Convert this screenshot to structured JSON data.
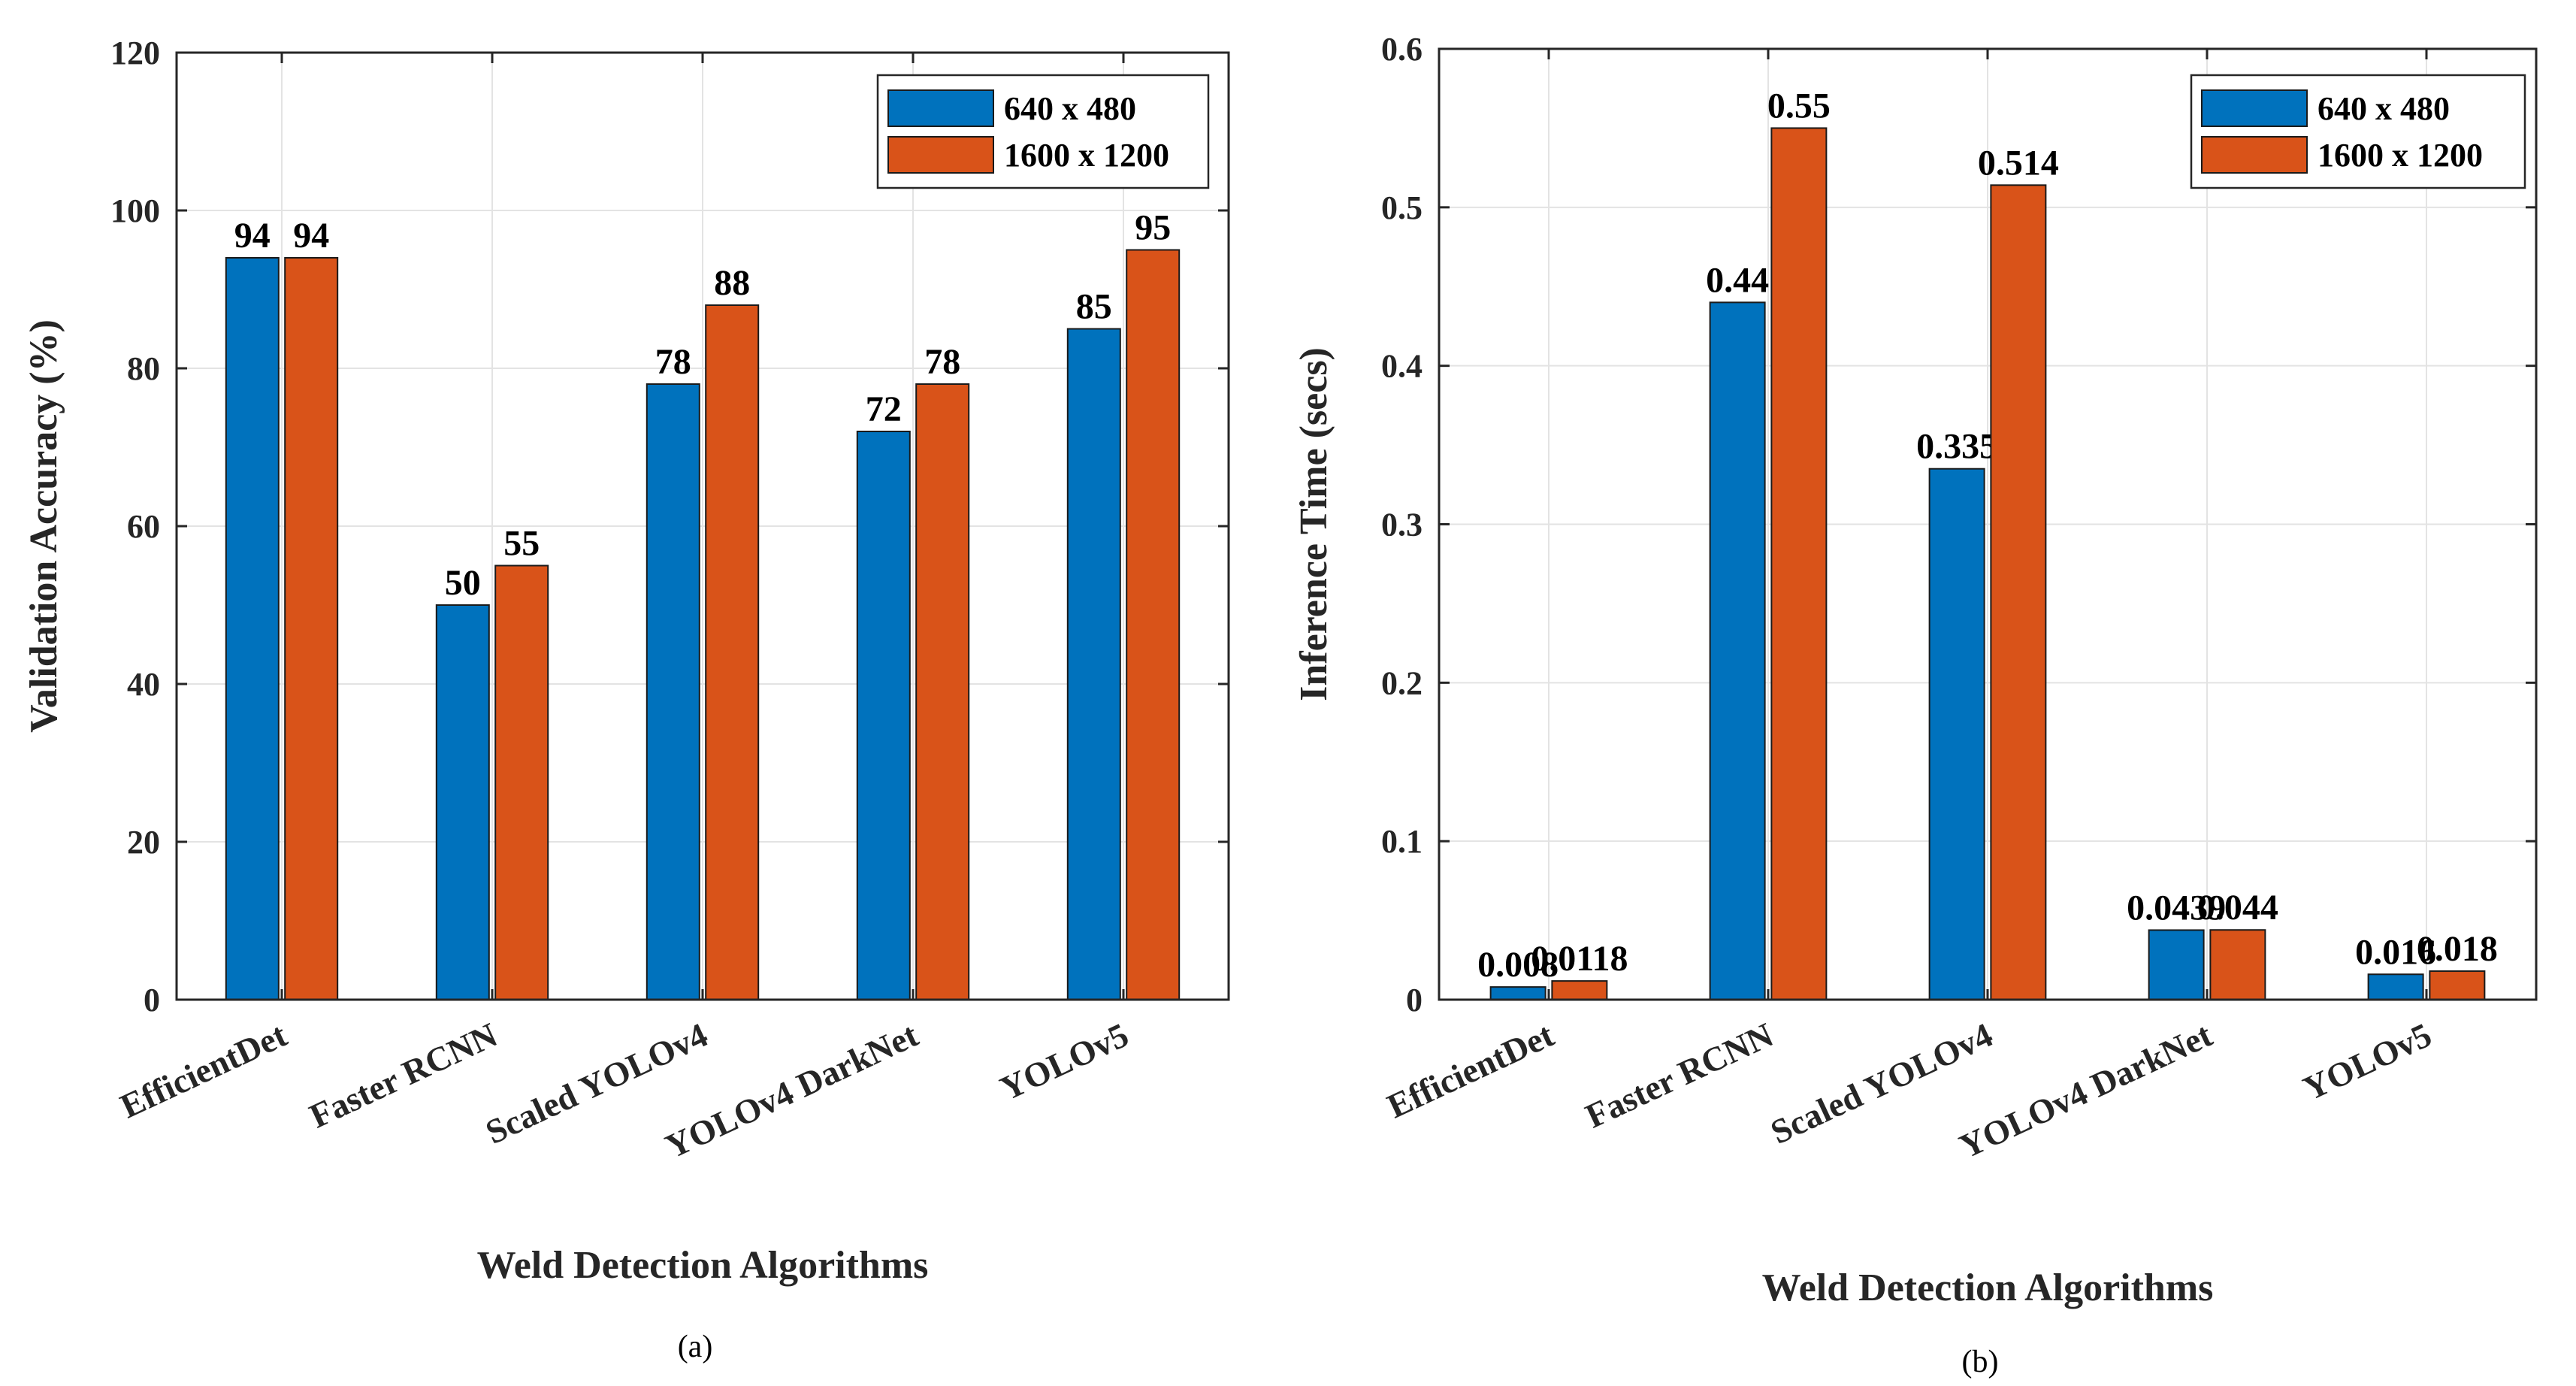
{
  "chart_data": [
    {
      "type": "bar",
      "caption": "(a)",
      "xlabel": "Weld Detection Algorithms",
      "ylabel": "Validation Accuracy (%)",
      "ylim": [
        0,
        120
      ],
      "yticks": [
        0,
        20,
        40,
        60,
        80,
        100,
        120
      ],
      "ytick_labels": [
        "0",
        "20",
        "40",
        "60",
        "80",
        "100",
        "120"
      ],
      "grid": true,
      "legend_position": "top-right",
      "categories": [
        "EfficientDet",
        "Faster RCNN",
        "Scaled YOLOv4",
        "YOLOv4 DarkNet",
        "YOLOv5"
      ],
      "series": [
        {
          "name": "640 x 480",
          "color": "#0072BD",
          "values": [
            94,
            50,
            78,
            72,
            85
          ],
          "labels": [
            "94",
            "50",
            "78",
            "72",
            "85"
          ]
        },
        {
          "name": "1600 x 1200",
          "color": "#D95319",
          "values": [
            94,
            55,
            88,
            78,
            95
          ],
          "labels": [
            "94",
            "55",
            "88",
            "78",
            "95"
          ]
        }
      ]
    },
    {
      "type": "bar",
      "caption": "(b)",
      "xlabel": "Weld Detection Algorithms",
      "ylabel": "Inference Time (secs)",
      "ylim": [
        0,
        0.6
      ],
      "yticks": [
        0,
        0.1,
        0.2,
        0.3,
        0.4,
        0.5,
        0.6
      ],
      "ytick_labels": [
        "0",
        "0.1",
        "0.2",
        "0.3",
        "0.4",
        "0.5",
        "0.6"
      ],
      "grid": true,
      "legend_position": "top-right",
      "categories": [
        "EfficientDet",
        "Faster RCNN",
        "Scaled YOLOv4",
        "YOLOv4 DarkNet",
        "YOLOv5"
      ],
      "series": [
        {
          "name": "640 x 480",
          "color": "#0072BD",
          "values": [
            0.008,
            0.44,
            0.335,
            0.0439,
            0.016
          ],
          "labels": [
            "0.008",
            "0.44",
            "0.335",
            "0.0439",
            "0.016"
          ]
        },
        {
          "name": "1600 x 1200",
          "color": "#D95319",
          "values": [
            0.0118,
            0.55,
            0.514,
            0.044,
            0.018
          ],
          "labels": [
            "0.0118",
            "0.55",
            "0.514",
            "0.044",
            "0.018"
          ]
        }
      ]
    }
  ]
}
